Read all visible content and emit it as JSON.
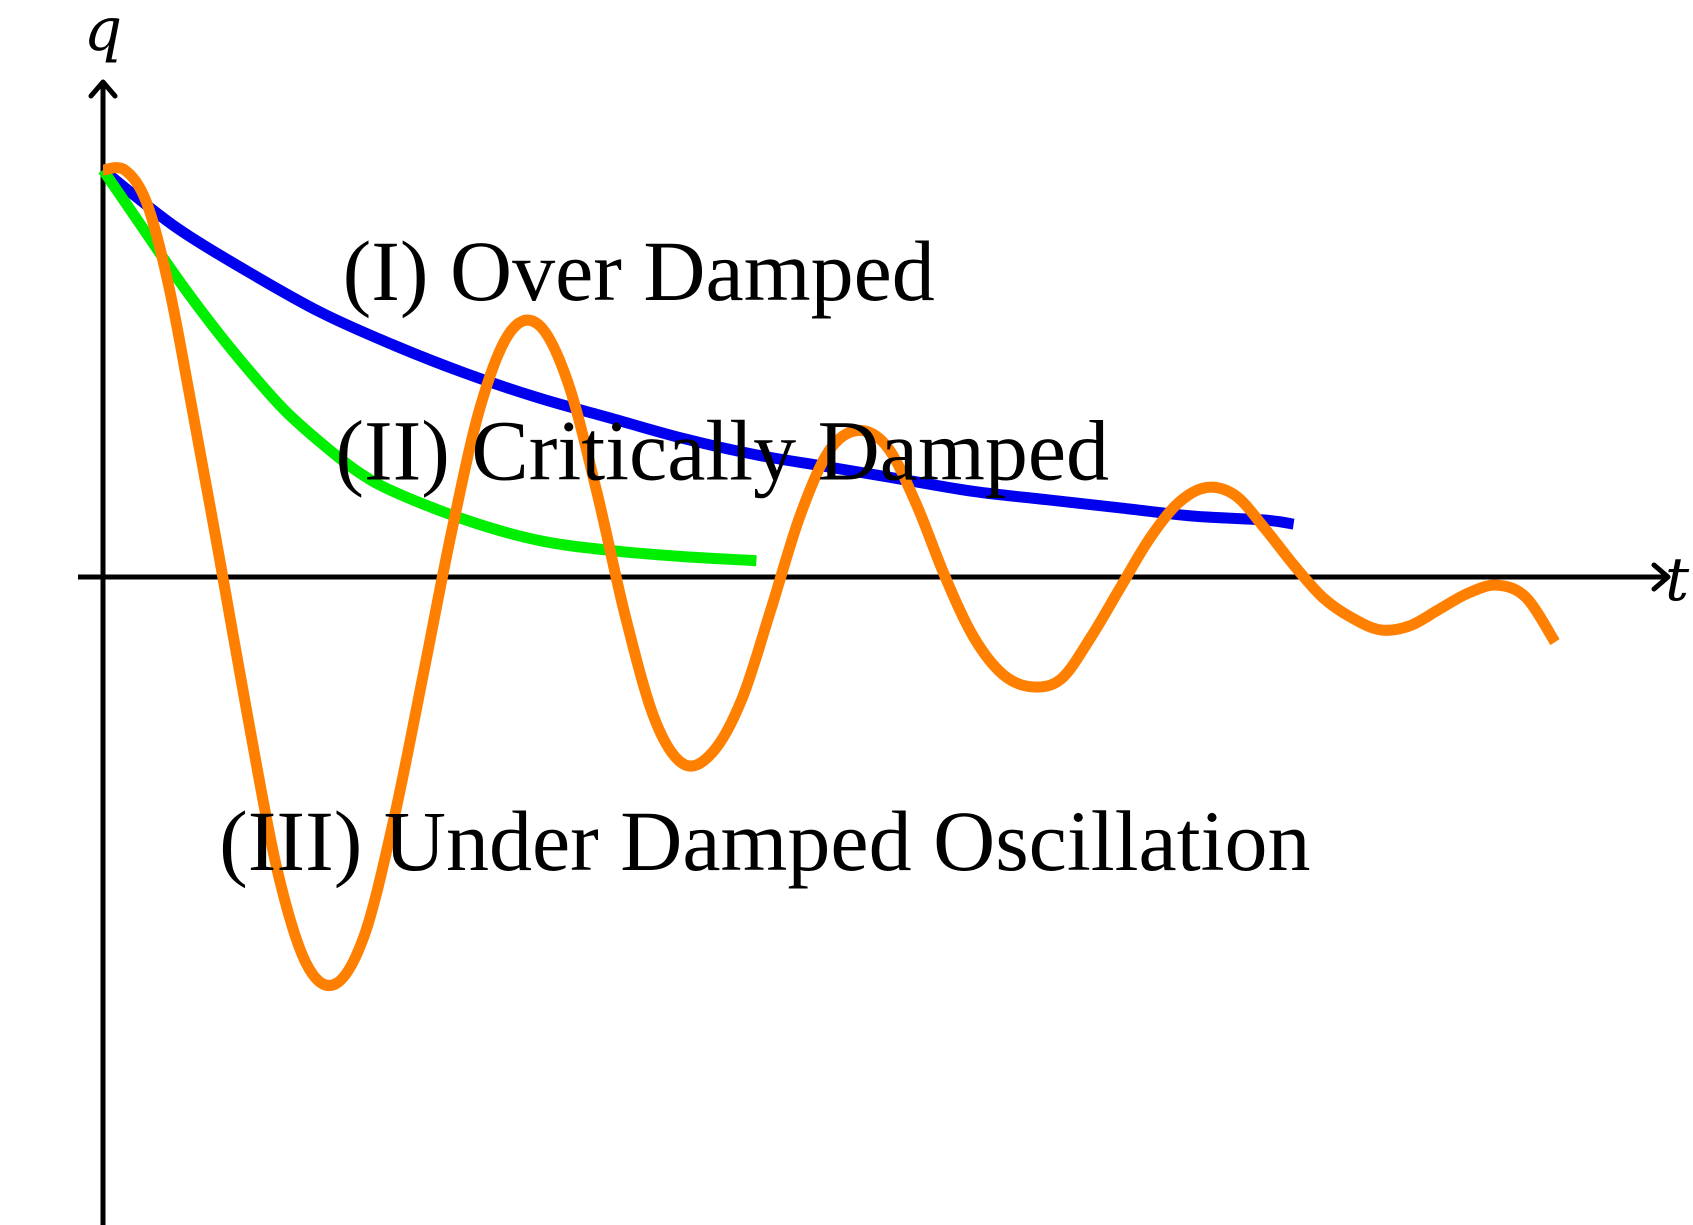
{
  "chart_data": {
    "type": "line",
    "title": "",
    "xlabel": "t",
    "ylabel": "q",
    "xlim": [
      0,
      10
    ],
    "ylim": [
      -1.6,
      1.0
    ],
    "grid": false,
    "series": [
      {
        "color": "#0000ee",
        "x": [
          0,
          0.5,
          1,
          1.5,
          2,
          2.5,
          3,
          3.5,
          4,
          4.5,
          5,
          5.5,
          6,
          6.5,
          7,
          7.5,
          8,
          8.2
        ],
        "values": [
          1.0,
          0.86,
          0.75,
          0.65,
          0.57,
          0.5,
          0.44,
          0.39,
          0.34,
          0.3,
          0.27,
          0.24,
          0.21,
          0.19,
          0.17,
          0.15,
          0.14,
          0.13
        ]
      },
      {
        "color": "#00ee00",
        "x": [
          0,
          0.25,
          0.5,
          0.75,
          1,
          1.25,
          1.5,
          1.75,
          2,
          2.5,
          3,
          3.5,
          4,
          4.5
        ],
        "values": [
          1.0,
          0.87,
          0.74,
          0.62,
          0.51,
          0.41,
          0.33,
          0.26,
          0.21,
          0.14,
          0.09,
          0.065,
          0.05,
          0.04
        ]
      },
      {
        "color": "#ff8000",
        "x": [
          0,
          0.15,
          0.3,
          0.45,
          0.6,
          0.8,
          1.0,
          1.2,
          1.4,
          1.6,
          1.8,
          2.0,
          2.2,
          2.4,
          2.6,
          2.8,
          3.0,
          3.2,
          3.4,
          3.6,
          3.8,
          4.0,
          4.2,
          4.4,
          4.6,
          4.8,
          5.0,
          5.2,
          5.4,
          5.6,
          5.8,
          6.0,
          6.2,
          6.4,
          6.6,
          6.8,
          7.0,
          7.2,
          7.4,
          7.6,
          7.8,
          8.0,
          8.2,
          8.4,
          8.6,
          8.8,
          9.0,
          9.2,
          9.4,
          9.6,
          9.8,
          10.0
        ],
        "values": [
          1.0,
          1.0,
          0.92,
          0.72,
          0.44,
          0.05,
          -0.35,
          -0.72,
          -0.95,
          -1.0,
          -0.88,
          -0.6,
          -0.25,
          0.11,
          0.42,
          0.6,
          0.62,
          0.48,
          0.21,
          -0.1,
          -0.35,
          -0.46,
          -0.43,
          -0.3,
          -0.08,
          0.15,
          0.31,
          0.36,
          0.32,
          0.18,
          0.0,
          -0.15,
          -0.24,
          -0.27,
          -0.25,
          -0.15,
          -0.03,
          0.09,
          0.18,
          0.22,
          0.2,
          0.12,
          0.03,
          -0.05,
          -0.1,
          -0.13,
          -0.12,
          -0.08,
          -0.04,
          -0.02,
          -0.05,
          -0.16
        ]
      }
    ],
    "annotations": [
      {
        "text": "(I) Over Damped",
        "x": 1.65,
        "y": 0.68,
        "color": "#000000"
      },
      {
        "text": "(II) Critically Damped",
        "x": 1.6,
        "y": 0.24,
        "color": "#000000"
      },
      {
        "text": "(III) Under Damped Oscillation",
        "x": 0.8,
        "y": -0.72,
        "color": "#000000"
      }
    ]
  }
}
